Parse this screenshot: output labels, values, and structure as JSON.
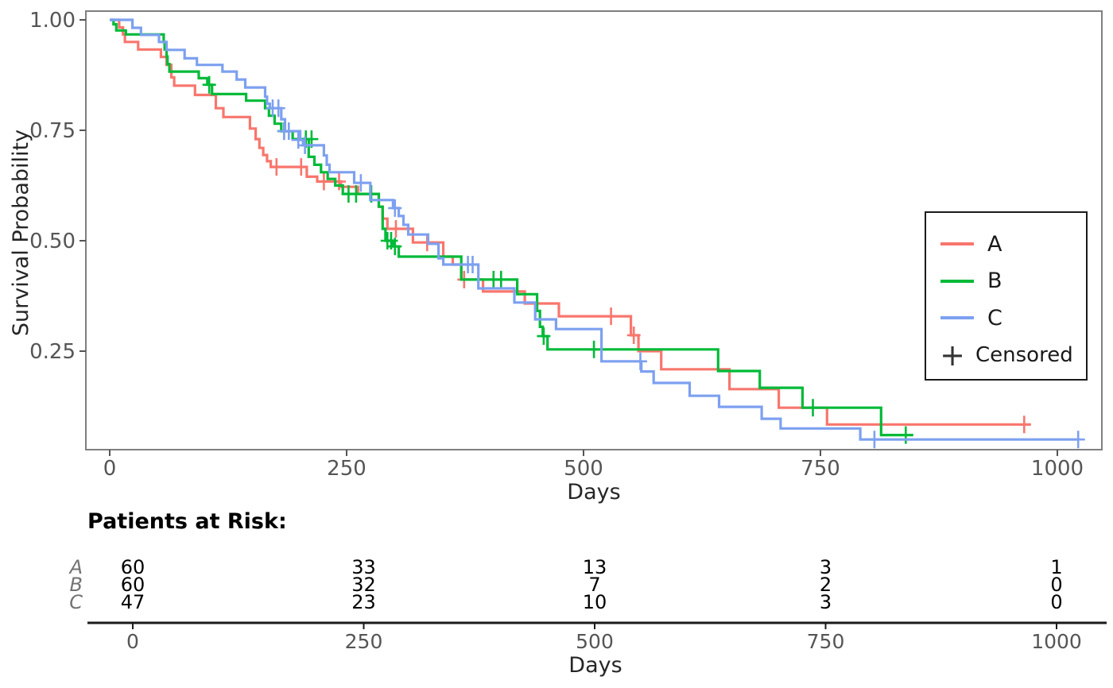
{
  "plot": {
    "ylabel": "Survival Probability",
    "xlabel": "Days"
  },
  "legend": {
    "entries": [
      {
        "label": "A",
        "color": "#F8766D"
      },
      {
        "label": "B",
        "color": "#00BA38"
      },
      {
        "label": "C",
        "color": "#7DA0F0"
      }
    ],
    "censored_symbol": "+",
    "censored_label": "Censored"
  },
  "risk_table": {
    "title": "Patients at Risk:",
    "xlabel": "Days",
    "columns": [
      0,
      250,
      500,
      750,
      1000
    ],
    "col_labels": [
      "0",
      "250",
      "500",
      "750",
      "1000"
    ],
    "rows": [
      {
        "label": "A",
        "values": [
          "60",
          "33",
          "13",
          "3",
          "1"
        ]
      },
      {
        "label": "B",
        "values": [
          "60",
          "32",
          "7",
          "2",
          "0"
        ]
      },
      {
        "label": "C",
        "values": [
          "47",
          "23",
          "10",
          "3",
          "0"
        ]
      }
    ]
  },
  "chart_data": {
    "type": "line",
    "subtype": "kaplan-meier-step",
    "xlabel": "Days",
    "ylabel": "Survival Probability",
    "xlim": [
      -25,
      1047
    ],
    "ylim": [
      0.03,
      1.02
    ],
    "x_ticks": [
      {
        "value": 0,
        "label": "0"
      },
      {
        "value": 250,
        "label": "250"
      },
      {
        "value": 500,
        "label": "500"
      },
      {
        "value": 750,
        "label": "750"
      },
      {
        "value": 1000,
        "label": "1000"
      }
    ],
    "y_ticks": [
      {
        "value": 0.25,
        "label": "0.25"
      },
      {
        "value": 0.5,
        "label": "0.50"
      },
      {
        "value": 0.75,
        "label": "0.75"
      },
      {
        "value": 1.0,
        "label": "1.00"
      }
    ],
    "grid": false,
    "legend_position": "right",
    "tick_color": "#555555",
    "panel_border_color": "#7f7f7f",
    "series": [
      {
        "name": "A",
        "color": "#F8766D",
        "points": [
          [
            0,
            1
          ],
          [
            10,
            0.983
          ],
          [
            14,
            0.967
          ],
          [
            16,
            0.95
          ],
          [
            30,
            0.933
          ],
          [
            54,
            0.916
          ],
          [
            60,
            0.898
          ],
          [
            65,
            0.87
          ],
          [
            68,
            0.851
          ],
          [
            90,
            0.83
          ],
          [
            112,
            0.8
          ],
          [
            120,
            0.78
          ],
          [
            148,
            0.754
          ],
          [
            154,
            0.73
          ],
          [
            158,
            0.71
          ],
          [
            162,
            0.694
          ],
          [
            166,
            0.68
          ],
          [
            170,
            0.667
          ],
          [
            208,
            0.645
          ],
          [
            219,
            0.634
          ],
          [
            244,
            0.622
          ],
          [
            262,
            0.606
          ],
          [
            284,
            0.577
          ],
          [
            288,
            0.55
          ],
          [
            293,
            0.527
          ],
          [
            320,
            0.496
          ],
          [
            352,
            0.464
          ],
          [
            362,
            0.446
          ],
          [
            371,
            0.412
          ],
          [
            394,
            0.385
          ],
          [
            438,
            0.358
          ],
          [
            474,
            0.329
          ],
          [
            550,
            0.286
          ],
          [
            558,
            0.25
          ],
          [
            582,
            0.209
          ],
          [
            654,
            0.164
          ],
          [
            706,
            0.122
          ],
          [
            757,
            0.084
          ],
          [
            972,
            0.084
          ]
        ],
        "censored": [
          [
            176,
            0.667
          ],
          [
            202,
            0.667
          ],
          [
            226,
            0.634
          ],
          [
            242,
            0.634
          ],
          [
            302,
            0.527
          ],
          [
            335,
            0.496
          ],
          [
            374,
            0.412
          ],
          [
            529,
            0.329
          ],
          [
            553,
            0.286
          ],
          [
            965,
            0.084
          ]
        ]
      },
      {
        "name": "B",
        "color": "#00BA38",
        "points": [
          [
            0,
            1
          ],
          [
            4,
            0.99
          ],
          [
            7,
            0.976
          ],
          [
            17,
            0.967
          ],
          [
            57,
            0.95
          ],
          [
            58,
            0.933
          ],
          [
            60,
            0.917
          ],
          [
            61,
            0.9
          ],
          [
            63,
            0.883
          ],
          [
            94,
            0.868
          ],
          [
            103,
            0.853
          ],
          [
            108,
            0.832
          ],
          [
            144,
            0.817
          ],
          [
            164,
            0.8
          ],
          [
            168,
            0.783
          ],
          [
            174,
            0.765
          ],
          [
            181,
            0.748
          ],
          [
            193,
            0.73
          ],
          [
            210,
            0.69
          ],
          [
            216,
            0.672
          ],
          [
            223,
            0.655
          ],
          [
            230,
            0.64
          ],
          [
            238,
            0.625
          ],
          [
            246,
            0.606
          ],
          [
            284,
            0.577
          ],
          [
            288,
            0.527
          ],
          [
            291,
            0.5
          ],
          [
            299,
            0.487
          ],
          [
            305,
            0.464
          ],
          [
            371,
            0.412
          ],
          [
            430,
            0.379
          ],
          [
            451,
            0.341
          ],
          [
            454,
            0.305
          ],
          [
            457,
            0.284
          ],
          [
            462,
            0.254
          ],
          [
            642,
            0.205
          ],
          [
            686,
            0.167
          ],
          [
            731,
            0.122
          ],
          [
            814,
            0.06
          ],
          [
            848,
            0.06
          ]
        ],
        "censored": [
          [
            105,
            0.853
          ],
          [
            184,
            0.748
          ],
          [
            207,
            0.73
          ],
          [
            213,
            0.73
          ],
          [
            252,
            0.606
          ],
          [
            260,
            0.606
          ],
          [
            276,
            0.606
          ],
          [
            293,
            0.5
          ],
          [
            297,
            0.5
          ],
          [
            301,
            0.487
          ],
          [
            405,
            0.412
          ],
          [
            413,
            0.412
          ],
          [
            458,
            0.284
          ],
          [
            511,
            0.254
          ],
          [
            742,
            0.122
          ],
          [
            840,
            0.06
          ]
        ]
      },
      {
        "name": "C",
        "color": "#7DA0F0",
        "points": [
          [
            0,
            1
          ],
          [
            24,
            0.982
          ],
          [
            33,
            0.966
          ],
          [
            52,
            0.95
          ],
          [
            60,
            0.932
          ],
          [
            79,
            0.913
          ],
          [
            92,
            0.898
          ],
          [
            119,
            0.883
          ],
          [
            134,
            0.865
          ],
          [
            143,
            0.847
          ],
          [
            164,
            0.826
          ],
          [
            166,
            0.81
          ],
          [
            169,
            0.8
          ],
          [
            181,
            0.775
          ],
          [
            185,
            0.748
          ],
          [
            201,
            0.728
          ],
          [
            204,
            0.716
          ],
          [
            226,
            0.693
          ],
          [
            229,
            0.672
          ],
          [
            232,
            0.655
          ],
          [
            258,
            0.631
          ],
          [
            275,
            0.592
          ],
          [
            299,
            0.574
          ],
          [
            305,
            0.556
          ],
          [
            310,
            0.536
          ],
          [
            315,
            0.514
          ],
          [
            336,
            0.493
          ],
          [
            347,
            0.46
          ],
          [
            352,
            0.446
          ],
          [
            389,
            0.392
          ],
          [
            427,
            0.36
          ],
          [
            449,
            0.322
          ],
          [
            471,
            0.3
          ],
          [
            519,
            0.227
          ],
          [
            561,
            0.204
          ],
          [
            574,
            0.178
          ],
          [
            612,
            0.149
          ],
          [
            643,
            0.124
          ],
          [
            688,
            0.097
          ],
          [
            708,
            0.075
          ],
          [
            792,
            0.05
          ],
          [
            1022,
            0.05
          ]
        ],
        "censored": [
          [
            172,
            0.8
          ],
          [
            178,
            0.8
          ],
          [
            184,
            0.748
          ],
          [
            189,
            0.748
          ],
          [
            199,
            0.728
          ],
          [
            206,
            0.716
          ],
          [
            265,
            0.631
          ],
          [
            301,
            0.574
          ],
          [
            378,
            0.446
          ],
          [
            383,
            0.446
          ],
          [
            560,
            0.227
          ],
          [
            807,
            0.05
          ],
          [
            1022,
            0.05
          ]
        ]
      }
    ]
  }
}
